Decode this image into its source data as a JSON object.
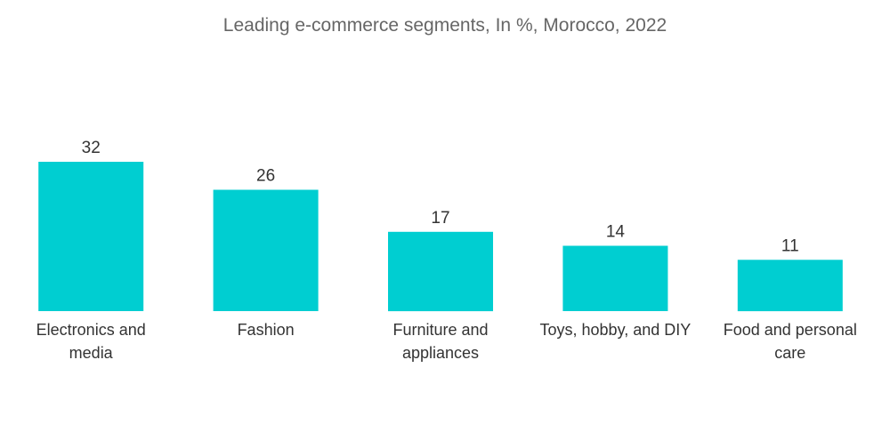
{
  "chart_data": {
    "type": "bar",
    "title": "Leading e-commerce segments, In %, Morocco, 2022",
    "categories": [
      [
        "Electronics and",
        "media"
      ],
      [
        "Fashion"
      ],
      [
        "Furniture and",
        "appliances"
      ],
      [
        "Toys, hobby, and DIY"
      ],
      [
        "Food and personal",
        "care"
      ]
    ],
    "values": [
      32,
      26,
      17,
      14,
      11
    ],
    "data_labels": [
      "32",
      "26",
      "17",
      "14",
      "11"
    ],
    "bar_color": "#00CED1",
    "ylim": [
      0,
      32
    ],
    "grid": false,
    "legend": "none"
  }
}
